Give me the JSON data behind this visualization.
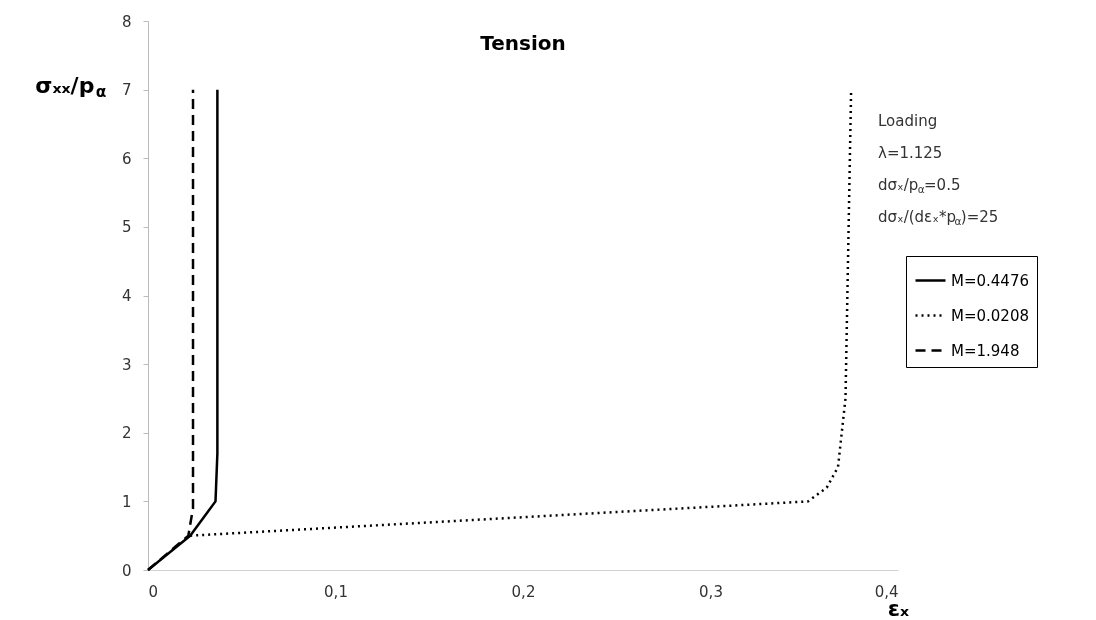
{
  "chart_data": {
    "type": "line",
    "title": "Tension",
    "xlabel": "εₓ",
    "ylabel": "σₓₓ/p$_{α}$",
    "xlim": [
      0,
      0.4
    ],
    "ylim": [
      0,
      8
    ],
    "xticks": [
      0,
      {
        "value": 0.1,
        "label": "0,1"
      },
      {
        "value": 0.2,
        "label": "0,2"
      },
      {
        "value": 0.3,
        "label": "0,3"
      },
      {
        "value": 0.4,
        "label": "0,4"
      }
    ],
    "yticks": [
      0,
      1,
      2,
      3,
      4,
      5,
      6,
      7,
      8
    ],
    "grid": false,
    "legend": "right",
    "marker": "none",
    "annotations": [
      "Loading",
      "λ=1.125",
      "dσₓ/p$_{α}$=0.5",
      "dσₓ/(dεₓ*p$_{α}$)=25"
    ],
    "series": [
      {
        "name": "M=0.4476",
        "color": "#000000",
        "line_style": "solid",
        "x": [
          0,
          0.0225,
          0.036,
          0.037,
          0.037
        ],
        "values": [
          0,
          0.5,
          1,
          1.7,
          7
        ]
      },
      {
        "name": "M=0.0208",
        "color": "#000000",
        "line_style": "dotted",
        "x": [
          0.0225,
          0.352,
          0.362,
          0.368,
          0.372,
          0.375
        ],
        "values": [
          0.5,
          1.0,
          1.2,
          1.5,
          2.5,
          7
        ]
      },
      {
        "name": "M=1.948",
        "color": "#000000",
        "line_style": "dashed",
        "x": [
          0,
          0.0215,
          0.024,
          0.024
        ],
        "values": [
          0,
          0.5,
          0.9,
          7
        ]
      }
    ]
  }
}
